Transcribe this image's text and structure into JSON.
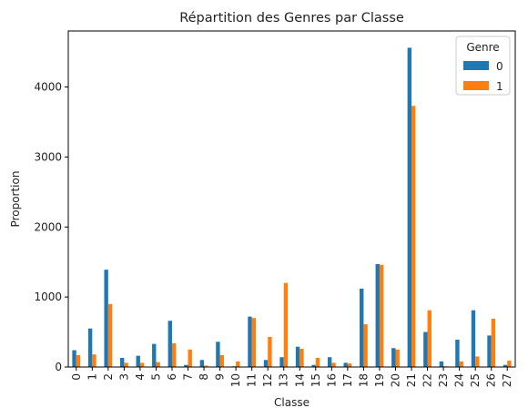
{
  "chart_data": {
    "type": "bar",
    "title": "Répartition des Genres par Classe",
    "xlabel": "Classe",
    "ylabel": "Proportion",
    "categories": [
      "0",
      "1",
      "2",
      "3",
      "4",
      "5",
      "6",
      "7",
      "8",
      "9",
      "10",
      "11",
      "12",
      "13",
      "14",
      "15",
      "16",
      "17",
      "18",
      "19",
      "20",
      "21",
      "22",
      "23",
      "24",
      "25",
      "26",
      "27"
    ],
    "series": [
      {
        "name": "0",
        "color": "#1f77b4",
        "values": [
          240,
          550,
          1390,
          130,
          160,
          330,
          660,
          30,
          100,
          360,
          10,
          720,
          100,
          140,
          290,
          30,
          140,
          60,
          1120,
          1470,
          270,
          4560,
          500,
          80,
          390,
          810,
          450,
          30
        ]
      },
      {
        "name": "1",
        "color": "#ff7f0e",
        "values": [
          170,
          180,
          900,
          60,
          60,
          70,
          340,
          250,
          20,
          170,
          80,
          700,
          430,
          1200,
          260,
          130,
          60,
          50,
          610,
          1460,
          250,
          3730,
          810,
          10,
          80,
          150,
          690,
          90
        ]
      }
    ],
    "yticks": [
      0,
      1000,
      2000,
      3000,
      4000
    ],
    "ylim": [
      0,
      4800
    ],
    "grid": false,
    "legend": {
      "title": "Genre",
      "position": "top-right",
      "entries": [
        "0",
        "1"
      ]
    }
  }
}
